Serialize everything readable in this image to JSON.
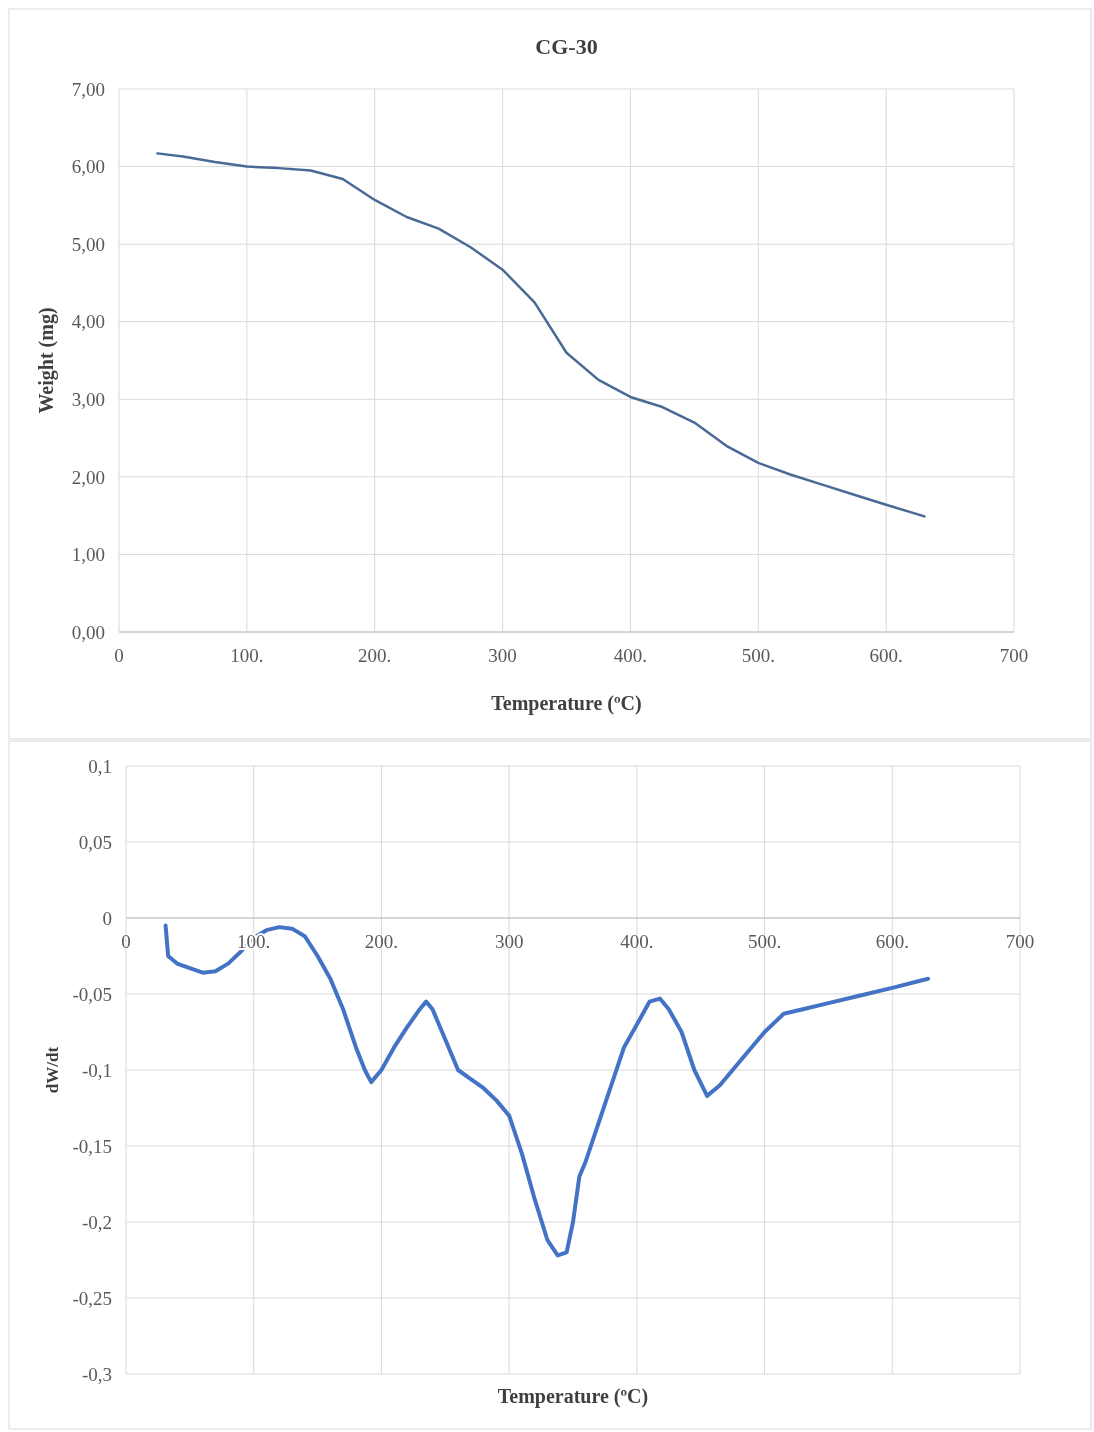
{
  "chart_data": [
    {
      "type": "line",
      "title": "CG-30",
      "xlabel": "Temperature (ºC)",
      "ylabel": "Weight (mg)",
      "xlim": [
        0,
        700
      ],
      "ylim": [
        0,
        7
      ],
      "xticks": [
        0,
        {
          "value": 100,
          "label": "100."
        },
        {
          "value": 200,
          "label": "200."
        },
        300,
        {
          "value": 400,
          "label": "400."
        },
        {
          "value": 500,
          "label": "500."
        },
        {
          "value": 600,
          "label": "600."
        },
        700
      ],
      "yticks": [
        {
          "value": 0,
          "label": "0,00"
        },
        {
          "value": 1,
          "label": "1,00"
        },
        {
          "value": 2,
          "label": "2,00"
        },
        {
          "value": 3,
          "label": "3,00"
        },
        {
          "value": 4,
          "label": "4,00"
        },
        {
          "value": 5,
          "label": "5,00"
        },
        {
          "value": 6,
          "label": "6,00"
        },
        {
          "value": 7,
          "label": "7,00"
        }
      ],
      "grid": true,
      "series": [
        {
          "color": "#4a6a96",
          "x": [
            30,
            50,
            75,
            100,
            125,
            150,
            175,
            200,
            225,
            250,
            275,
            300,
            325,
            350,
            375,
            400,
            425,
            450,
            475,
            500,
            525,
            550,
            575,
            600,
            630
          ],
          "values": [
            6.17,
            6.13,
            6.06,
            6.0,
            5.98,
            5.95,
            5.84,
            5.57,
            5.35,
            5.2,
            4.96,
            4.67,
            4.25,
            3.6,
            3.25,
            3.03,
            2.9,
            2.7,
            2.4,
            2.18,
            2.03,
            1.9,
            1.77,
            1.64,
            1.49
          ]
        }
      ]
    },
    {
      "type": "line",
      "xlabel": "Temperature (ºC)",
      "ylabel": "dW/dt",
      "xlim": [
        0,
        700
      ],
      "ylim": [
        -0.3,
        0.1
      ],
      "xticks": [
        0,
        {
          "value": 100,
          "label": "100."
        },
        {
          "value": 200,
          "label": "200."
        },
        300,
        {
          "value": 400,
          "label": "400."
        },
        {
          "value": 500,
          "label": "500."
        },
        {
          "value": 600,
          "label": "600."
        },
        700
      ],
      "yticks": [
        {
          "value": -0.3,
          "label": "-0,3"
        },
        {
          "value": -0.25,
          "label": "-0,25"
        },
        {
          "value": -0.2,
          "label": "-0,2"
        },
        {
          "value": -0.15,
          "label": "-0,15"
        },
        {
          "value": -0.1,
          "label": "-0,1"
        },
        {
          "value": -0.05,
          "label": "-0,05"
        },
        0,
        {
          "value": 0.05,
          "label": "0,05"
        },
        {
          "value": 0.1,
          "label": "0,1"
        }
      ],
      "grid": true,
      "series": [
        {
          "color": "#4472c4",
          "x": [
            31,
            33,
            40,
            50,
            60,
            70,
            80,
            90,
            100,
            110,
            120,
            130,
            140,
            150,
            160,
            170,
            180,
            187,
            192,
            200,
            210,
            220,
            230,
            235,
            240,
            250,
            260,
            270,
            280,
            290,
            300,
            310,
            320,
            330,
            338,
            345,
            350,
            355,
            360,
            370,
            380,
            390,
            400,
            410,
            418,
            425,
            435,
            445,
            455,
            465,
            475,
            485,
            500,
            515,
            530,
            550,
            575,
            600,
            628
          ],
          "values": [
            -0.005,
            -0.025,
            -0.03,
            -0.033,
            -0.036,
            -0.035,
            -0.03,
            -0.022,
            -0.013,
            -0.008,
            -0.006,
            -0.007,
            -0.012,
            -0.025,
            -0.04,
            -0.06,
            -0.085,
            -0.1,
            -0.108,
            -0.1,
            -0.085,
            -0.072,
            -0.06,
            -0.055,
            -0.06,
            -0.08,
            -0.1,
            -0.106,
            -0.112,
            -0.12,
            -0.13,
            -0.155,
            -0.185,
            -0.212,
            -0.222,
            -0.22,
            -0.2,
            -0.17,
            -0.16,
            -0.135,
            -0.11,
            -0.085,
            -0.07,
            -0.055,
            -0.053,
            -0.06,
            -0.075,
            -0.1,
            -0.117,
            -0.11,
            -0.1,
            -0.09,
            -0.075,
            -0.063,
            -0.06,
            -0.056,
            -0.051,
            -0.046,
            -0.04
          ]
        }
      ]
    }
  ]
}
